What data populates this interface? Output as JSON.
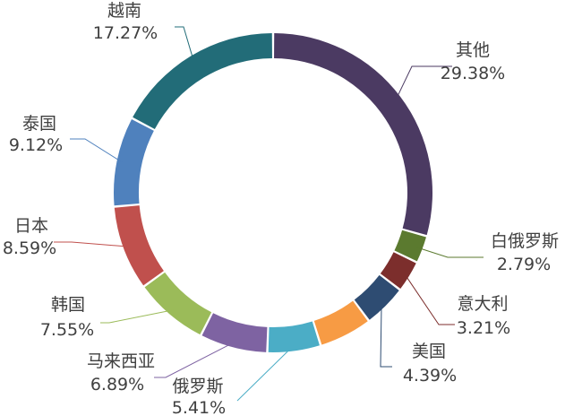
{
  "chart_data": {
    "type": "pie",
    "variant": "doughnut",
    "legend": "none",
    "data_labels": "outside-with-leader-lines",
    "slices": [
      {
        "name": "其他",
        "label": "29.38%",
        "value": 29.38,
        "color": "#4b3a62"
      },
      {
        "name": "白俄罗斯",
        "label": "2.79%",
        "value": 2.79,
        "color": "#5b7a2f"
      },
      {
        "name": "意大利",
        "label": "3.21%",
        "value": 3.21,
        "color": "#7c2e2c"
      },
      {
        "name": "美国",
        "label": "4.39%",
        "value": 4.39,
        "color": "#2e4c72"
      },
      {
        "name": "",
        "label": "",
        "value": 5.41,
        "color": "#f79b44"
      },
      {
        "name": "俄罗斯",
        "label": "5.41%",
        "value": 5.41,
        "color": "#4badc6"
      },
      {
        "name": "马来西亚",
        "label": "6.89%",
        "value": 6.89,
        "color": "#7e63a2"
      },
      {
        "name": "韩国",
        "label": "7.55%",
        "value": 7.55,
        "color": "#9bbb59"
      },
      {
        "name": "日本",
        "label": "8.59%",
        "value": 8.59,
        "color": "#c0504d"
      },
      {
        "name": "泰国",
        "label": "9.12%",
        "value": 9.12,
        "color": "#4f81bd"
      },
      {
        "name": "越南",
        "label": "17.27%",
        "value": 17.27,
        "color": "#226c78"
      }
    ]
  }
}
